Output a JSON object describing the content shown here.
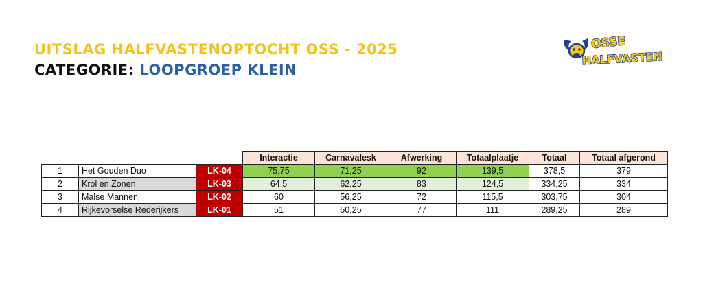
{
  "header": {
    "title": "UITSLAG HALFVASTENOPTOCHT OSS - 2025",
    "category_label": "CATEGORIE:",
    "category_value": "LOOPGROEP KLEIN"
  },
  "logo": {
    "line1": "OSSE",
    "line2": "HALFVASTEN"
  },
  "table": {
    "columns": [
      "Interactie",
      "Carnavalesk",
      "Afwerking",
      "Totaalplaatje",
      "Totaal",
      "Totaal afgerond"
    ],
    "rows": [
      {
        "rank": "1",
        "name": "Het Gouden Duo",
        "code": "LK-04",
        "interactie": "75,75",
        "carnavalesk": "71,25",
        "afwerking": "92",
        "totaalplaatje": "139,5",
        "totaal": "378,5",
        "afgerond": "379"
      },
      {
        "rank": "2",
        "name": "Krol en Zonen",
        "code": "LK-03",
        "interactie": "64,5",
        "carnavalesk": "62,25",
        "afwerking": "83",
        "totaalplaatje": "124,5",
        "totaal": "334,25",
        "afgerond": "334"
      },
      {
        "rank": "3",
        "name": "Malse Mannen",
        "code": "LK-02",
        "interactie": "60",
        "carnavalesk": "56,25",
        "afwerking": "72",
        "totaalplaatje": "115,5",
        "totaal": "303,75",
        "afgerond": "304"
      },
      {
        "rank": "4",
        "name": "Rijkevorselse Rederijkers",
        "code": "LK-01",
        "interactie": "51",
        "carnavalesk": "50,25",
        "afwerking": "77",
        "totaalplaatje": "111",
        "totaal": "289,25",
        "afgerond": "289"
      }
    ]
  },
  "colors": {
    "title_yellow": "#f2c318",
    "category_blue": "#2e5fa3",
    "header_peach": "#fbe3d6",
    "code_red": "#c00000",
    "first_place_green": "#92d050",
    "second_place_green": "#e2efda",
    "name_grey": "#d9d9d9"
  }
}
